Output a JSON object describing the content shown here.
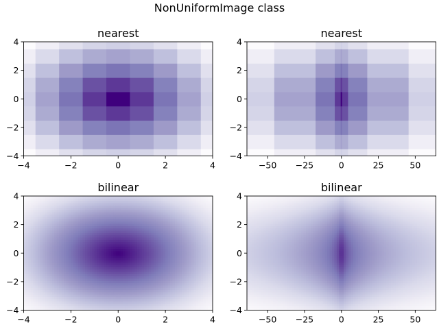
{
  "suptitle": "NonUniformImage class",
  "colormap": "Purples_r",
  "colormap_stops": [
    "#3f007d",
    "#54278f",
    "#6a51a3",
    "#807dba",
    "#9e9ac8",
    "#bcbddc",
    "#dadaeb",
    "#efedf5",
    "#fcfbfd"
  ],
  "chart_data": [
    {
      "type": "heatmap",
      "title": "nearest",
      "interpolation": "nearest",
      "x_coords": "linear",
      "z": "sqrt(x^2 + y^2) with x in [-4, 4], y in [-4, 4]",
      "xlim": [
        -4,
        4
      ],
      "ylim": [
        -4,
        4
      ],
      "xticks": [
        -4,
        -2,
        0,
        2,
        4
      ],
      "xtick_labels": [
        "−4",
        "−2",
        "0",
        "2",
        "4"
      ],
      "yticks": [
        -4,
        -2,
        0,
        2,
        4
      ],
      "ytick_labels": [
        "−4",
        "−2",
        "0",
        "2",
        "4"
      ],
      "grid": false
    },
    {
      "type": "heatmap",
      "title": "nearest",
      "interpolation": "nearest",
      "x_coords": "x^3",
      "z": "sqrt(x^2 + y^2) displayed at x^3",
      "xlim": [
        -64,
        64
      ],
      "ylim": [
        -4,
        4
      ],
      "xticks": [
        -50,
        -25,
        0,
        25,
        50
      ],
      "xtick_labels": [
        "−50",
        "−25",
        "0",
        "25",
        "50"
      ],
      "yticks": [
        -4,
        -2,
        0,
        2,
        4
      ],
      "ytick_labels": [
        "−4",
        "−2",
        "0",
        "2",
        "4"
      ],
      "grid": false
    },
    {
      "type": "heatmap",
      "title": "bilinear",
      "interpolation": "bilinear",
      "x_coords": "linear",
      "z": "sqrt(x^2 + y^2) with x in [-4, 4], y in [-4, 4]",
      "xlim": [
        -4,
        4
      ],
      "ylim": [
        -4,
        4
      ],
      "xticks": [
        -4,
        -2,
        0,
        2,
        4
      ],
      "xtick_labels": [
        "−4",
        "−2",
        "0",
        "2",
        "4"
      ],
      "yticks": [
        -4,
        -2,
        0,
        2,
        4
      ],
      "ytick_labels": [
        "−4",
        "−2",
        "0",
        "2",
        "4"
      ],
      "grid": false
    },
    {
      "type": "heatmap",
      "title": "bilinear",
      "interpolation": "bilinear",
      "x_coords": "x^3",
      "z": "sqrt(x^2 + y^2) displayed at x^3",
      "xlim": [
        -64,
        64
      ],
      "ylim": [
        -4,
        4
      ],
      "xticks": [
        -50,
        -25,
        0,
        25,
        50
      ],
      "xtick_labels": [
        "−50",
        "−25",
        "0",
        "25",
        "50"
      ],
      "yticks": [
        -4,
        -2,
        0,
        2,
        4
      ],
      "ytick_labels": [
        "−4",
        "−2",
        "0",
        "2",
        "4"
      ],
      "grid": false
    }
  ]
}
